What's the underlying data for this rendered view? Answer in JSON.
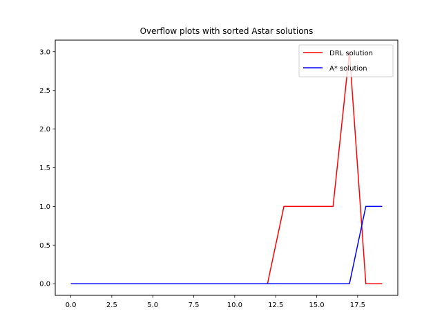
{
  "chart_data": {
    "type": "line",
    "title": "Overflow plots with sorted Astar solutions",
    "xlabel": "",
    "ylabel": "",
    "xlim": [
      -0.95,
      19.95
    ],
    "ylim": [
      -0.15,
      3.15
    ],
    "xticks": [
      0.0,
      2.5,
      5.0,
      7.5,
      10.0,
      12.5,
      15.0,
      17.5
    ],
    "xtick_labels": [
      "0.0",
      "2.5",
      "5.0",
      "7.5",
      "10.0",
      "12.5",
      "15.0",
      "17.5"
    ],
    "yticks": [
      0.0,
      0.5,
      1.0,
      1.5,
      2.0,
      2.5,
      3.0
    ],
    "ytick_labels": [
      "0.0",
      "0.5",
      "1.0",
      "1.5",
      "2.0",
      "2.5",
      "3.0"
    ],
    "grid": false,
    "legend_position": "top-right",
    "x": [
      0,
      1,
      2,
      3,
      4,
      5,
      6,
      7,
      8,
      9,
      10,
      11,
      12,
      13,
      14,
      15,
      16,
      17,
      18,
      19
    ],
    "series": [
      {
        "name": "DRL solution",
        "color": "#ff0000",
        "values": [
          0,
          0,
          0,
          0,
          0,
          0,
          0,
          0,
          0,
          0,
          0,
          0,
          0,
          1,
          1,
          1,
          1,
          3,
          0,
          0
        ]
      },
      {
        "name": "A* solution",
        "color": "#0000ff",
        "values": [
          0,
          0,
          0,
          0,
          0,
          0,
          0,
          0,
          0,
          0,
          0,
          0,
          0,
          0,
          0,
          0,
          0,
          0,
          1,
          1
        ]
      }
    ]
  }
}
